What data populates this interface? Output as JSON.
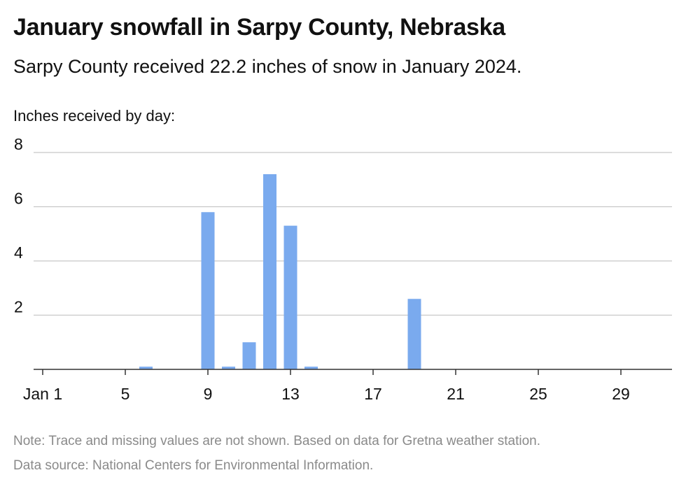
{
  "header": {
    "title": "January snowfall in Sarpy County, Nebraska",
    "subtitle": "Sarpy County received 22.2 inches of snow in January 2024.",
    "y_caption": "Inches received by day:"
  },
  "footer": {
    "note": "Note: Trace and missing values are not shown. Based on data for Gretna weather station.",
    "source": "Data source: National Centers for Environmental Information."
  },
  "colors": {
    "bar": "#7aaaee",
    "grid": "#c8c8c8",
    "axis": "#333333"
  },
  "chart_data": {
    "type": "bar",
    "ylabel": "Inches received by day:",
    "ylim": [
      0,
      8
    ],
    "yticks": [
      2,
      4,
      6,
      8
    ],
    "xlim": [
      1,
      31
    ],
    "xticks": [
      {
        "day": 1,
        "label": "Jan 1"
      },
      {
        "day": 5,
        "label": "5"
      },
      {
        "day": 9,
        "label": "9"
      },
      {
        "day": 13,
        "label": "13"
      },
      {
        "day": 17,
        "label": "17"
      },
      {
        "day": 21,
        "label": "21"
      },
      {
        "day": 25,
        "label": "25"
      },
      {
        "day": 29,
        "label": "29"
      }
    ],
    "grid": true,
    "series": [
      {
        "days": [
          6,
          9,
          10,
          11,
          12,
          13,
          14,
          19
        ],
        "values": [
          0.1,
          5.8,
          0.1,
          1.0,
          7.2,
          5.3,
          0.1,
          2.6
        ]
      }
    ]
  }
}
